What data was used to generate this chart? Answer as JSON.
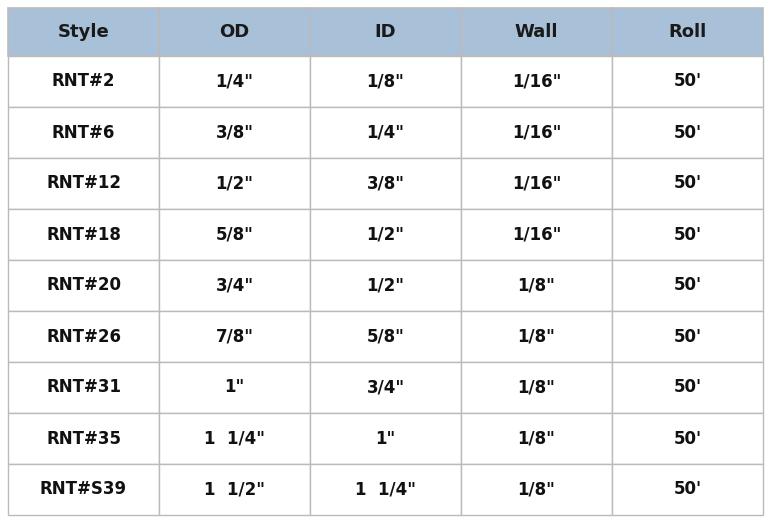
{
  "headers": [
    "Style",
    "OD",
    "ID",
    "Wall",
    "Roll"
  ],
  "rows": [
    [
      "RNT#2",
      "1/4\"",
      "1/8\"",
      "1/16\"",
      "50'"
    ],
    [
      "RNT#6",
      "3/8\"",
      "1/4\"",
      "1/16\"",
      "50'"
    ],
    [
      "RNT#12",
      "1/2\"",
      "3/8\"",
      "1/16\"",
      "50'"
    ],
    [
      "RNT#18",
      "5/8\"",
      "1/2\"",
      "1/16\"",
      "50'"
    ],
    [
      "RNT#20",
      "3/4\"",
      "1/2\"",
      "1/8\"",
      "50'"
    ],
    [
      "RNT#26",
      "7/8\"",
      "5/8\"",
      "1/8\"",
      "50'"
    ],
    [
      "RNT#31",
      "1\"",
      "3/4\"",
      "1/8\"",
      "50'"
    ],
    [
      "RNT#35",
      "1  1/4\"",
      "1\"",
      "1/8\"",
      "50'"
    ],
    [
      "RNT#S39",
      "1  1/2\"",
      "1  1/4\"",
      "1/8\"",
      "50'"
    ]
  ],
  "header_bg_color": "#A8C0D8",
  "header_text_color": "#1a1a1a",
  "row_bg_color": "#FFFFFF",
  "border_color": "#BBBBBB",
  "text_color": "#111111",
  "header_fontsize": 13,
  "row_fontsize": 12,
  "fig_bg_color": "#FFFFFF",
  "outer_border_color": "#999999"
}
